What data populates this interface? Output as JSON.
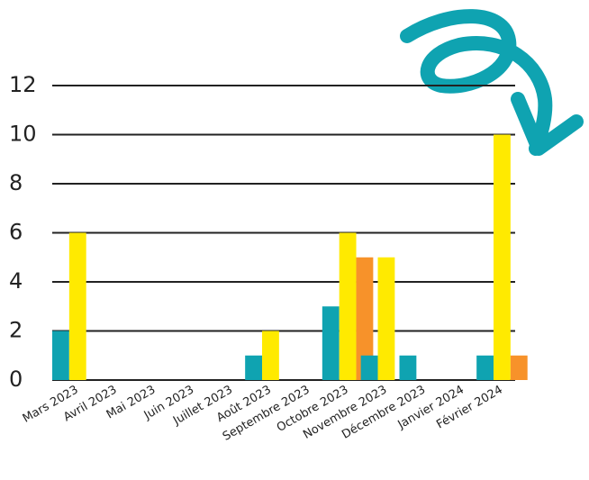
{
  "chart_data": {
    "type": "bar",
    "categories": [
      "Mars 2023",
      "Avril 2023",
      "Mai 2023",
      "Juin 2023",
      "Juillet 2023",
      "Août 2023",
      "Septembre 2023",
      "Octobre 2023",
      "Novembre 2023",
      "Décembre 2023",
      "Janvier 2024",
      "Février 2024"
    ],
    "series": [
      {
        "color": "#0fa3b1",
        "values": [
          2,
          0,
          0,
          0,
          0,
          1,
          0,
          3,
          1,
          1,
          0,
          1
        ]
      },
      {
        "color": "#ffea00",
        "values": [
          6,
          0,
          0,
          0,
          0,
          2,
          0,
          6,
          5,
          0,
          0,
          10
        ]
      },
      {
        "color": "#f7922a",
        "values": [
          0,
          0,
          0,
          0,
          0,
          0,
          0,
          5,
          0,
          0,
          0,
          1
        ]
      }
    ],
    "ylim": [
      0,
      12
    ],
    "yticks": [
      0,
      2,
      4,
      6,
      8,
      10,
      12
    ],
    "grid": true
  }
}
